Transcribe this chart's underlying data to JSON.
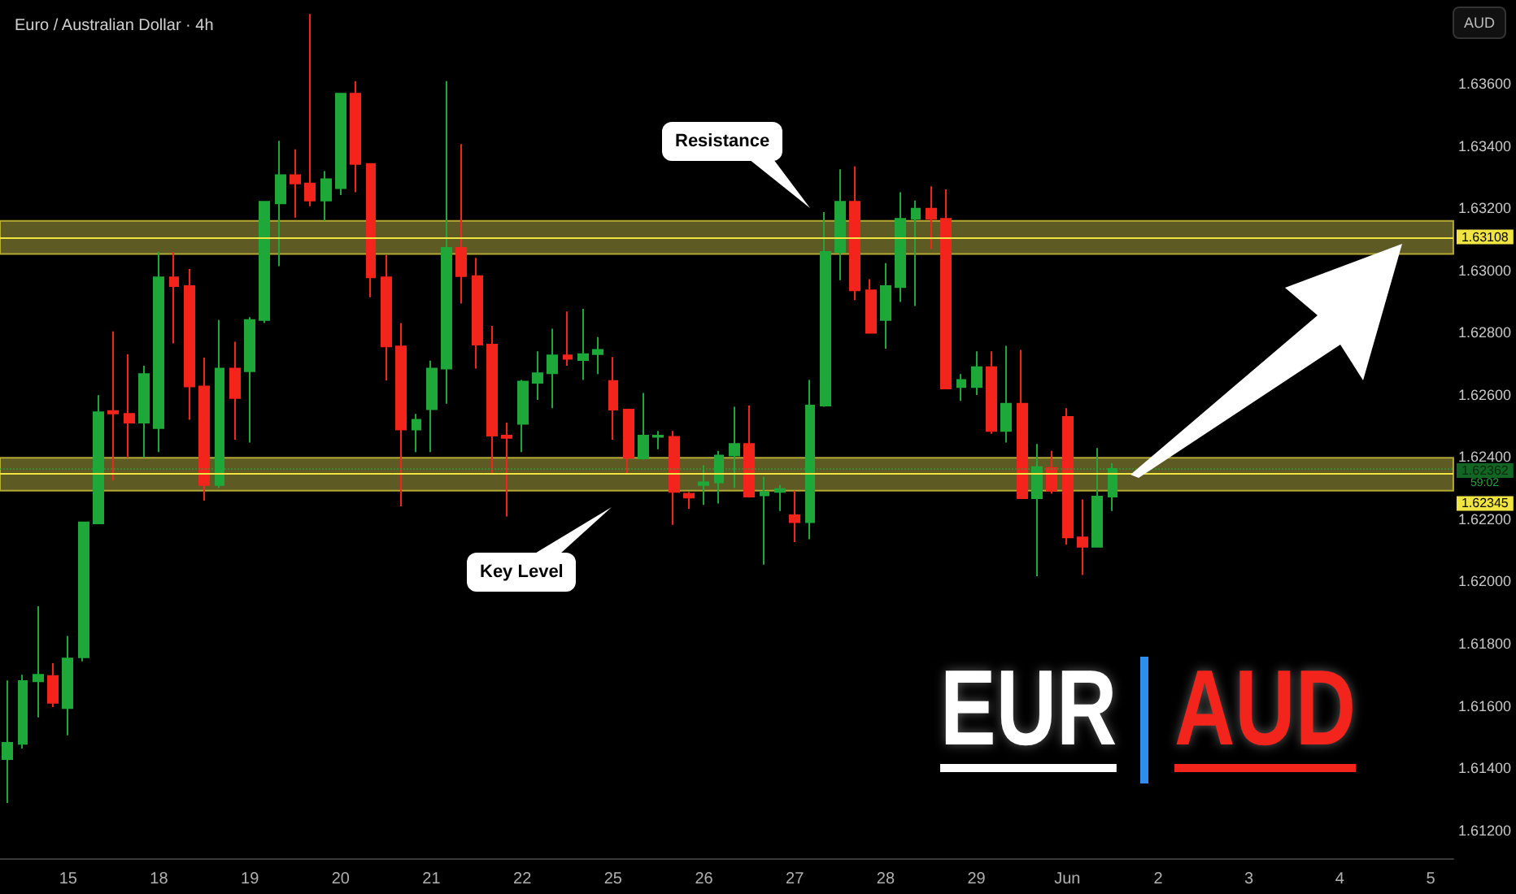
{
  "chart_data": {
    "type": "candlestick",
    "title": "Euro / Australian Dollar · 4h",
    "ylabel": "AUD",
    "categories": [
      null,
      null,
      null,
      null,
      "15",
      null,
      null,
      null,
      null,
      null,
      "18",
      null,
      null,
      null,
      null,
      null,
      "19",
      null,
      null,
      null,
      null,
      null,
      "20",
      null,
      null,
      null,
      null,
      null,
      "21",
      null,
      null,
      null,
      null,
      null,
      "22",
      null,
      null,
      null,
      null,
      null,
      "25",
      null,
      null,
      null,
      null,
      null,
      "26",
      null,
      null,
      null,
      null,
      null,
      "27",
      null,
      null,
      null,
      null,
      null,
      "28",
      null,
      null,
      null,
      null,
      null,
      "29",
      null,
      null,
      null,
      null,
      null,
      "Jun",
      null,
      null,
      null,
      null,
      null,
      "2",
      null,
      null,
      null,
      null,
      null,
      "3",
      null,
      null,
      null,
      null,
      null,
      "4",
      null,
      null,
      null,
      null,
      null,
      "5",
      null
    ],
    "ohlc": [
      [
        1.61429,
        1.61682,
        1.61288,
        1.61481
      ],
      [
        1.61478,
        1.617,
        1.61463,
        1.6168
      ],
      [
        1.61679,
        1.6192,
        1.61563,
        1.617
      ],
      [
        1.61696,
        1.61737,
        1.61596,
        1.6161
      ],
      [
        1.61593,
        1.61825,
        1.61505,
        1.61752
      ],
      [
        1.61756,
        1.6219,
        1.61743,
        1.6219
      ],
      [
        1.62187,
        1.62599,
        1.62187,
        1.62544
      ],
      [
        1.62548,
        1.62804,
        1.62325,
        1.6254
      ],
      [
        1.62539,
        1.62731,
        1.62398,
        1.62511
      ],
      [
        1.62511,
        1.62694,
        1.62398,
        1.62667
      ],
      [
        1.62493,
        1.6306,
        1.62416,
        1.62978
      ],
      [
        1.62978,
        1.6306,
        1.62766,
        1.6295
      ],
      [
        1.6295,
        1.63005,
        1.6252,
        1.62627
      ],
      [
        1.62627,
        1.6272,
        1.6226,
        1.6231
      ],
      [
        1.6231,
        1.62841,
        1.62301,
        1.62685
      ],
      [
        1.62685,
        1.62771,
        1.62456,
        1.6259
      ],
      [
        1.62676,
        1.6285,
        1.62447,
        1.62841
      ],
      [
        1.62841,
        1.63221,
        1.62831,
        1.63221
      ],
      [
        1.63216,
        1.63417,
        1.63014,
        1.63307
      ],
      [
        1.63307,
        1.6339,
        1.6317,
        1.6328
      ],
      [
        1.6328,
        1.63825,
        1.63207,
        1.63225
      ],
      [
        1.63225,
        1.6332,
        1.6316,
        1.63294
      ],
      [
        1.63265,
        1.63569,
        1.63243,
        1.63569
      ],
      [
        1.63569,
        1.63609,
        1.63252,
        1.63343
      ],
      [
        1.63343,
        1.63343,
        1.62914,
        1.62978
      ],
      [
        1.62978,
        1.6305,
        1.62646,
        1.62756
      ],
      [
        1.62756,
        1.62831,
        1.62242,
        1.62489
      ],
      [
        1.62489,
        1.62539,
        1.62416,
        1.6252
      ],
      [
        1.62554,
        1.6271,
        1.62416,
        1.62685
      ],
      [
        1.62685,
        1.63609,
        1.62572,
        1.63073
      ],
      [
        1.63073,
        1.63407,
        1.62894,
        1.62982
      ],
      [
        1.62982,
        1.63041,
        1.62685,
        1.62762
      ],
      [
        1.62762,
        1.62822,
        1.62346,
        1.62469
      ],
      [
        1.62469,
        1.62511,
        1.62209,
        1.62462
      ],
      [
        1.62507,
        1.62648,
        1.62416,
        1.62643
      ],
      [
        1.62639,
        1.6274,
        1.62584,
        1.6267
      ],
      [
        1.6267,
        1.62813,
        1.62557,
        1.62727
      ],
      [
        1.62727,
        1.62868,
        1.62694,
        1.62716
      ],
      [
        1.62712,
        1.62877,
        1.62648,
        1.62731
      ],
      [
        1.62731,
        1.62786,
        1.62667,
        1.62745
      ],
      [
        1.62645,
        1.62722,
        1.62456,
        1.62553
      ],
      [
        1.62553,
        1.62553,
        1.62346,
        1.62398
      ],
      [
        1.62396,
        1.62606,
        1.62392,
        1.62469
      ],
      [
        1.62465,
        1.62484,
        1.62425,
        1.62469
      ],
      [
        1.62465,
        1.62484,
        1.62182,
        1.62288
      ],
      [
        1.62282,
        1.62288,
        1.62233,
        1.6227
      ],
      [
        1.6231,
        1.62374,
        1.62246,
        1.62319
      ],
      [
        1.62319,
        1.6242,
        1.62251,
        1.62405
      ],
      [
        1.62405,
        1.62562,
        1.62301,
        1.62442
      ],
      [
        1.62442,
        1.62566,
        1.6227,
        1.62273
      ],
      [
        1.62277,
        1.62337,
        1.62054,
        1.62288
      ],
      [
        1.62288,
        1.6231,
        1.62227,
        1.62297
      ],
      [
        1.62213,
        1.62292,
        1.62127,
        1.62191
      ],
      [
        1.62191,
        1.62648,
        1.62136,
        1.62566
      ],
      [
        1.62566,
        1.63188,
        1.62562,
        1.6306
      ],
      [
        1.6306,
        1.63326,
        1.62969,
        1.63221
      ],
      [
        1.63221,
        1.63335,
        1.62905,
        1.62936
      ],
      [
        1.62936,
        1.62972,
        1.628,
        1.628
      ],
      [
        1.62841,
        1.63024,
        1.62749,
        1.6295
      ],
      [
        1.62947,
        1.63252,
        1.62899,
        1.63166
      ],
      [
        1.63166,
        1.63225,
        1.62886,
        1.63199
      ],
      [
        1.63199,
        1.63271,
        1.63069,
        1.63166
      ],
      [
        1.63166,
        1.63261,
        1.62621,
        1.62621
      ],
      [
        1.62625,
        1.62667,
        1.62581,
        1.62648
      ],
      [
        1.62625,
        1.6274,
        1.626,
        1.62689
      ],
      [
        1.62689,
        1.6274,
        1.62475,
        1.62484
      ],
      [
        1.62484,
        1.62758,
        1.62447,
        1.62572
      ],
      [
        1.62572,
        1.62745,
        1.62268,
        1.62268
      ],
      [
        1.62268,
        1.62442,
        1.62017,
        1.62368
      ],
      [
        1.62365,
        1.6242,
        1.62282,
        1.62292
      ],
      [
        1.62529,
        1.62557,
        1.62118,
        1.62142
      ],
      [
        1.62142,
        1.62264,
        1.62021,
        1.62112
      ],
      [
        1.62112,
        1.62429,
        1.62112,
        1.62273
      ],
      [
        1.62273,
        1.6238,
        1.62227,
        1.62362
      ],
      null,
      null,
      null,
      null,
      null,
      null,
      null,
      null,
      null,
      null,
      null,
      null,
      null,
      null,
      null,
      null,
      null,
      null,
      null,
      null,
      null,
      null
    ],
    "colors": [
      "#1fa83a",
      "#1fa83a",
      "#1fa83a",
      "#f2241b",
      "#1fa83a",
      "#1fa83a",
      "#1fa83a",
      "#f2241b",
      "#f2241b",
      "#1fa83a",
      "#1fa83a",
      "#f2241b",
      "#f2241b",
      "#f2241b",
      "#1fa83a",
      "#f2241b",
      "#1fa83a",
      "#1fa83a",
      "#1fa83a",
      "#f2241b",
      "#f2241b",
      "#1fa83a",
      "#1fa83a",
      "#f2241b",
      "#f2241b",
      "#f2241b",
      "#f2241b",
      "#1fa83a",
      "#1fa83a",
      "#1fa83a",
      "#f2241b",
      "#f2241b",
      "#f2241b",
      "#f2241b",
      "#1fa83a",
      "#1fa83a",
      "#1fa83a",
      "#f2241b",
      "#1fa83a",
      "#1fa83a",
      "#f2241b",
      "#f2241b",
      "#1fa83a",
      "#1fa83a",
      "#f2241b",
      "#f2241b",
      "#1fa83a",
      "#1fa83a",
      "#1fa83a",
      "#f2241b",
      "#1fa83a",
      "#1fa83a",
      "#f2241b",
      "#1fa83a",
      "#1fa83a",
      "#1fa83a",
      "#f2241b",
      "#f2241b",
      "#1fa83a",
      "#1fa83a",
      "#1fa83a",
      "#f2241b",
      "#f2241b",
      "#1fa83a",
      "#1fa83a",
      "#f2241b",
      "#1fa83a",
      "#f2241b",
      "#1fa83a",
      "#f2241b",
      "#f2241b",
      "#f2241b",
      "#1fa83a",
      "#1fa83a",
      null,
      null,
      null,
      null,
      null,
      null,
      null,
      null,
      null,
      null,
      null,
      null,
      null,
      null,
      null,
      null,
      null,
      null,
      null,
      null,
      null,
      null
    ],
    "ylim": [
      1.6111,
      1.6387
    ],
    "yticks": [
      {
        "value": 1.612,
        "label": "1.61200"
      },
      {
        "value": 1.614,
        "label": "1.61400"
      },
      {
        "value": 1.616,
        "label": "1.61600"
      },
      {
        "value": 1.618,
        "label": "1.61800"
      },
      {
        "value": 1.62,
        "label": "1.62000"
      },
      {
        "value": 1.622,
        "label": "1.62200"
      },
      {
        "value": 1.624,
        "label": "1.62400"
      },
      {
        "value": 1.626,
        "label": "1.62600"
      },
      {
        "value": 1.628,
        "label": "1.62800"
      },
      {
        "value": 1.63,
        "label": "1.63000"
      },
      {
        "value": 1.632,
        "label": "1.63200"
      },
      {
        "value": 1.634,
        "label": "1.63400"
      },
      {
        "value": 1.636,
        "label": "1.63600"
      }
    ],
    "bands": [
      {
        "axis": "y",
        "from": 1.62292,
        "to": 1.62398,
        "color": "#6e6a2a"
      },
      {
        "axis": "y",
        "from": 1.63053,
        "to": 1.6316,
        "color": "#6e6a2a"
      }
    ],
    "ref_lines": [
      {
        "axis": "y",
        "value": 1.63108,
        "label": "1.63108",
        "color": "#f0e442"
      },
      {
        "axis": "y",
        "value": 1.62345,
        "label": "1.62345",
        "color": "#f0e442"
      },
      {
        "axis": "y",
        "value": 1.62362,
        "label": "1.62362",
        "color": "#1fa83a",
        "line_style": "dotted"
      }
    ],
    "annotations": [
      "Resistance",
      "Key Level",
      "EUR",
      "AUD",
      "59:02"
    ]
  }
}
